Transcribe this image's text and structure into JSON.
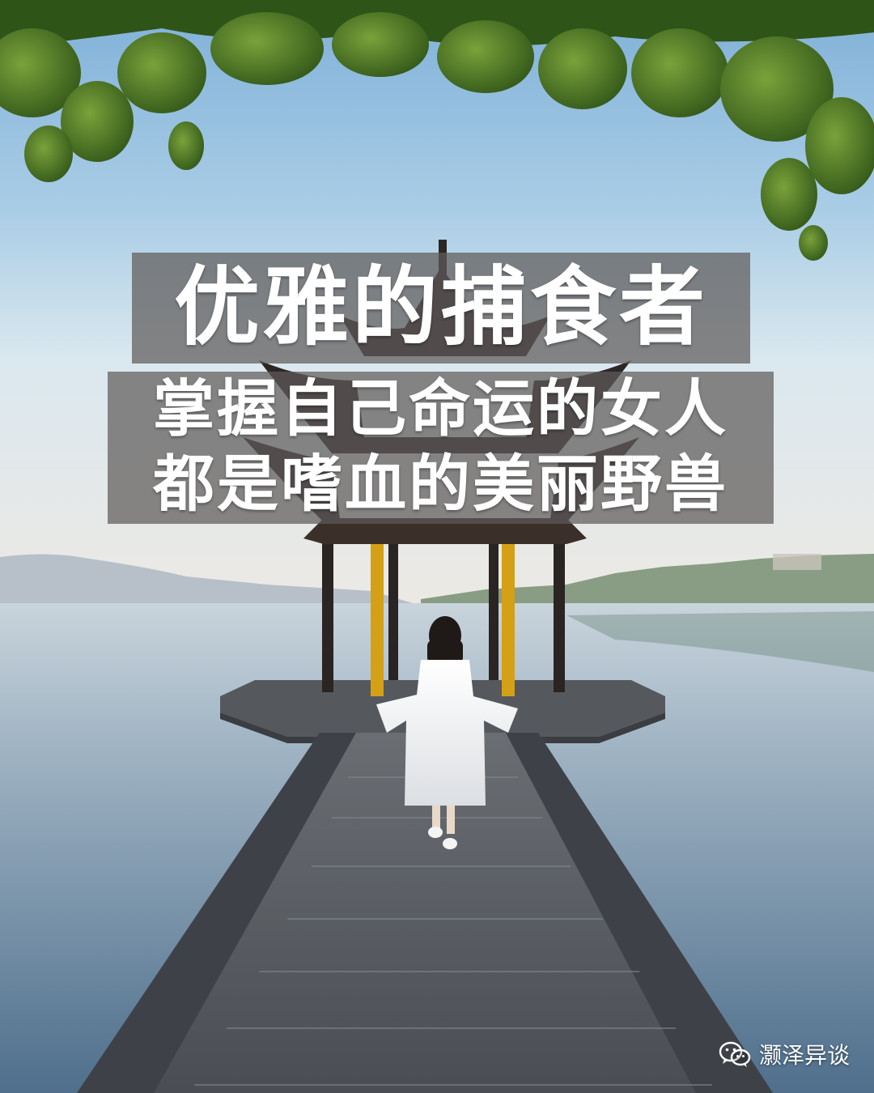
{
  "overlay": {
    "title": "优雅的捕食者",
    "line1": "掌握自己命运的女人",
    "line2": "都是嗜血的美丽野兽"
  },
  "watermark": {
    "icon": "wechat-icon",
    "text": "灏泽异谈"
  },
  "colors": {
    "sky_top": "#8fb9dc",
    "lake": "#6f8da8",
    "caption_bg": "#5f5c5a",
    "foliage": "#3f6b22",
    "pillar_gold": "#d4a016"
  }
}
